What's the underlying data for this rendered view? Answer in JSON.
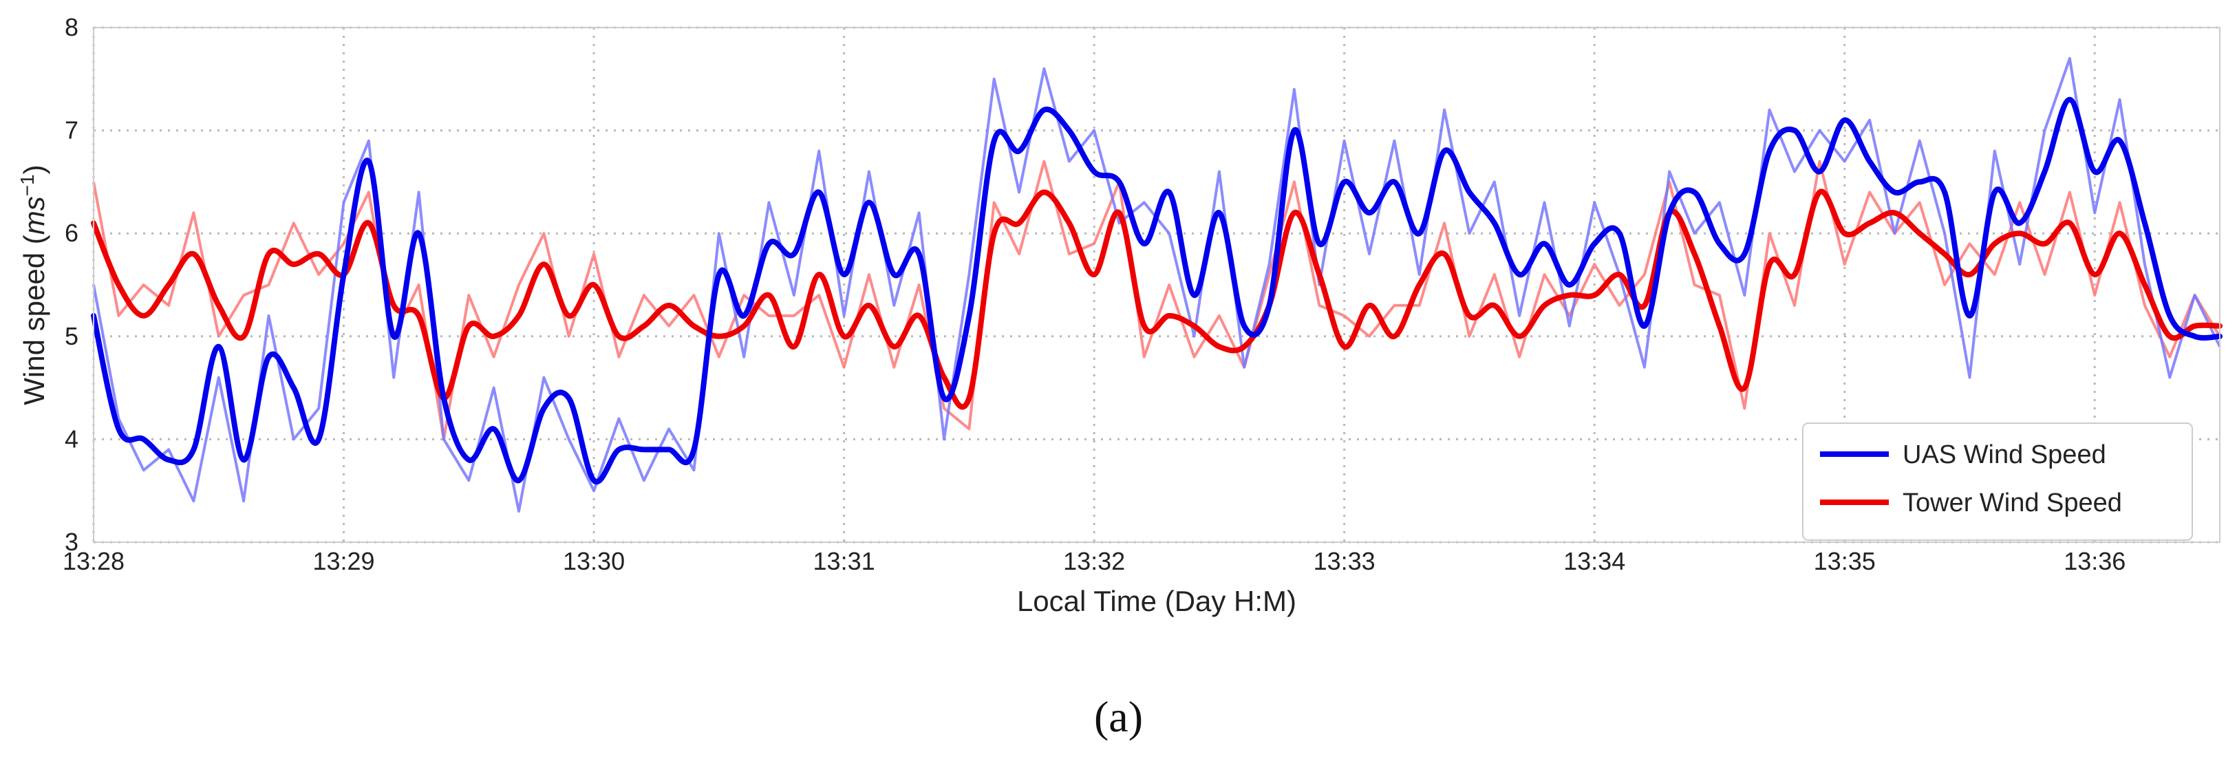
{
  "caption": "(a)",
  "chart_data": {
    "type": "line",
    "xlabel": "Local Time (Day H:M)",
    "ylabel_main": "Wind speed (",
    "ylabel_unit_base": "ms",
    "ylabel_unit_exp": "−1",
    "ylabel_close": ")",
    "xlim": [
      0,
      8.5
    ],
    "ylim": [
      3,
      8
    ],
    "grid": true,
    "legend_position": "lower-right",
    "x_ticks": [
      {
        "value": 0,
        "label": "13:28"
      },
      {
        "value": 1,
        "label": "13:29"
      },
      {
        "value": 2,
        "label": "13:30"
      },
      {
        "value": 3,
        "label": "13:31"
      },
      {
        "value": 4,
        "label": "13:32"
      },
      {
        "value": 5,
        "label": "13:33"
      },
      {
        "value": 6,
        "label": "13:34"
      },
      {
        "value": 7,
        "label": "13:35"
      },
      {
        "value": 8,
        "label": "13:36"
      }
    ],
    "y_ticks": [
      3,
      4,
      5,
      6,
      7,
      8
    ],
    "x_values_minutes_after_13_28": [
      0,
      0.1,
      0.2,
      0.3,
      0.4,
      0.5,
      0.6,
      0.7,
      0.8,
      0.9,
      1.0,
      1.1,
      1.2,
      1.3,
      1.4,
      1.5,
      1.6,
      1.7,
      1.8,
      1.9,
      2.0,
      2.1,
      2.2,
      2.3,
      2.4,
      2.5,
      2.6,
      2.7,
      2.8,
      2.9,
      3.0,
      3.1,
      3.2,
      3.3,
      3.4,
      3.5,
      3.6,
      3.7,
      3.8,
      3.9,
      4.0,
      4.1,
      4.2,
      4.3,
      4.4,
      4.5,
      4.6,
      4.7,
      4.8,
      4.9,
      5.0,
      5.1,
      5.2,
      5.3,
      5.4,
      5.5,
      5.6,
      5.7,
      5.8,
      5.9,
      6.0,
      6.1,
      6.2,
      6.3,
      6.4,
      6.5,
      6.6,
      6.7,
      6.8,
      6.9,
      7.0,
      7.1,
      7.2,
      7.3,
      7.4,
      7.5,
      7.6,
      7.7,
      7.8,
      7.9,
      8.0,
      8.1,
      8.2,
      8.3,
      8.4,
      8.5
    ],
    "series": [
      {
        "name": "UAS Wind Speed",
        "color": "#0000ee",
        "raw_color": "#7777ff",
        "smoothed": [
          5.2,
          4.1,
          4.0,
          3.8,
          3.9,
          4.9,
          3.8,
          4.8,
          4.5,
          4.0,
          5.6,
          6.7,
          5.0,
          6.0,
          4.4,
          3.8,
          4.1,
          3.6,
          4.3,
          4.4,
          3.6,
          3.9,
          3.9,
          3.9,
          3.9,
          5.6,
          5.2,
          5.9,
          5.8,
          6.4,
          5.6,
          6.3,
          5.6,
          5.8,
          4.4,
          5.2,
          6.9,
          6.8,
          7.2,
          7.0,
          6.6,
          6.5,
          5.9,
          6.4,
          5.4,
          6.2,
          5.1,
          5.3,
          7.0,
          5.9,
          6.5,
          6.2,
          6.5,
          6.0,
          6.8,
          6.4,
          6.1,
          5.6,
          5.9,
          5.5,
          5.9,
          6.0,
          5.1,
          6.2,
          6.4,
          5.9,
          5.8,
          6.8,
          7.0,
          6.6,
          7.1,
          6.7,
          6.4,
          6.5,
          6.4,
          5.2,
          6.4,
          6.1,
          6.6,
          7.3,
          6.6,
          6.9,
          6.1,
          5.2,
          5.0,
          5.0
        ],
        "raw": [
          5.5,
          4.2,
          3.7,
          3.9,
          3.4,
          4.6,
          3.4,
          5.2,
          4.0,
          4.3,
          6.3,
          6.9,
          4.6,
          6.4,
          4.0,
          3.6,
          4.5,
          3.3,
          4.6,
          4.0,
          3.5,
          4.2,
          3.6,
          4.1,
          3.7,
          6.0,
          4.8,
          6.3,
          5.4,
          6.8,
          5.2,
          6.6,
          5.3,
          6.2,
          4.0,
          5.6,
          7.5,
          6.4,
          7.6,
          6.7,
          7.0,
          6.1,
          6.3,
          6.0,
          5.0,
          6.6,
          4.7,
          5.7,
          7.4,
          5.5,
          6.9,
          5.8,
          6.9,
          5.6,
          7.2,
          6.0,
          6.5,
          5.2,
          6.3,
          5.1,
          6.3,
          5.6,
          4.7,
          6.6,
          6.0,
          6.3,
          5.4,
          7.2,
          6.6,
          7.0,
          6.7,
          7.1,
          6.0,
          6.9,
          6.0,
          4.6,
          6.8,
          5.7,
          7.0,
          7.7,
          6.2,
          7.3,
          5.7,
          4.6,
          5.4,
          4.9
        ]
      },
      {
        "name": "Tower Wind Speed",
        "color": "#ee0000",
        "raw_color": "#ff7777",
        "smoothed": [
          6.1,
          5.5,
          5.2,
          5.5,
          5.8,
          5.3,
          5.0,
          5.8,
          5.7,
          5.8,
          5.6,
          6.1,
          5.3,
          5.2,
          4.4,
          5.1,
          5.0,
          5.2,
          5.7,
          5.2,
          5.5,
          5.0,
          5.1,
          5.3,
          5.1,
          5.0,
          5.1,
          5.4,
          4.9,
          5.6,
          5.0,
          5.3,
          4.9,
          5.2,
          4.6,
          4.4,
          6.0,
          6.1,
          6.4,
          6.1,
          5.6,
          6.2,
          5.1,
          5.2,
          5.1,
          4.9,
          4.9,
          5.3,
          6.2,
          5.6,
          4.9,
          5.3,
          5.0,
          5.5,
          5.8,
          5.2,
          5.3,
          5.0,
          5.3,
          5.4,
          5.4,
          5.6,
          5.3,
          6.2,
          5.8,
          5.1,
          4.5,
          5.7,
          5.6,
          6.4,
          6.0,
          6.1,
          6.2,
          6.0,
          5.8,
          5.6,
          5.9,
          6.0,
          5.9,
          6.1,
          5.6,
          6.0,
          5.5,
          5.0,
          5.1,
          5.1
        ],
        "raw": [
          6.5,
          5.2,
          5.5,
          5.3,
          6.2,
          5.0,
          5.4,
          5.5,
          6.1,
          5.6,
          5.9,
          6.4,
          5.0,
          5.5,
          4.0,
          5.4,
          4.8,
          5.5,
          6.0,
          5.0,
          5.8,
          4.8,
          5.4,
          5.1,
          5.4,
          4.8,
          5.4,
          5.2,
          5.2,
          5.4,
          4.7,
          5.6,
          4.7,
          5.5,
          4.3,
          4.1,
          6.3,
          5.8,
          6.7,
          5.8,
          5.9,
          6.5,
          4.8,
          5.5,
          4.8,
          5.2,
          4.7,
          5.6,
          6.5,
          5.3,
          5.2,
          5.0,
          5.3,
          5.3,
          6.1,
          5.0,
          5.6,
          4.8,
          5.6,
          5.2,
          5.7,
          5.3,
          5.6,
          6.5,
          5.5,
          5.4,
          4.3,
          6.0,
          5.3,
          6.7,
          5.7,
          6.4,
          6.0,
          6.3,
          5.5,
          5.9,
          5.6,
          6.3,
          5.6,
          6.4,
          5.4,
          6.3,
          5.3,
          4.8,
          5.4,
          5.0
        ]
      }
    ]
  }
}
